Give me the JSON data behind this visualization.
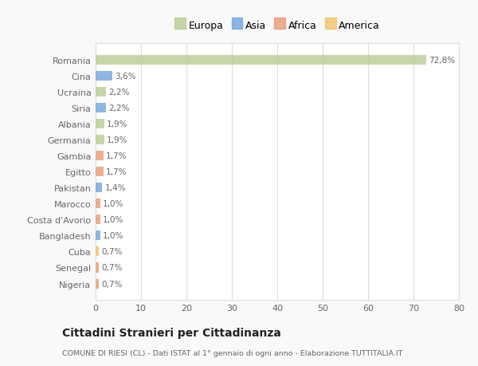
{
  "categories": [
    "Nigeria",
    "Senegal",
    "Cuba",
    "Bangladesh",
    "Costa d'Avorio",
    "Marocco",
    "Pakistan",
    "Egitto",
    "Gambia",
    "Germania",
    "Albania",
    "Siria",
    "Ucraina",
    "Cina",
    "Romania"
  ],
  "values": [
    0.7,
    0.7,
    0.7,
    1.0,
    1.0,
    1.0,
    1.4,
    1.7,
    1.7,
    1.9,
    1.9,
    2.2,
    2.2,
    3.6,
    72.8
  ],
  "labels": [
    "0,7%",
    "0,7%",
    "0,7%",
    "1,0%",
    "1,0%",
    "1,0%",
    "1,4%",
    "1,7%",
    "1,7%",
    "1,9%",
    "1,9%",
    "2,2%",
    "2,2%",
    "3,6%",
    "72,8%"
  ],
  "colors": [
    "#e8956d",
    "#e8956d",
    "#f0c060",
    "#6a9fd8",
    "#e8956d",
    "#e8956d",
    "#6a9fd8",
    "#e8956d",
    "#e8956d",
    "#b5c98e",
    "#b5c98e",
    "#6a9fd8",
    "#b5c98e",
    "#6a9fd8",
    "#b5c98e"
  ],
  "legend": [
    {
      "label": "Europa",
      "color": "#b5c98e"
    },
    {
      "label": "Asia",
      "color": "#6a9fd8"
    },
    {
      "label": "Africa",
      "color": "#e8956d"
    },
    {
      "label": "America",
      "color": "#f0c060"
    }
  ],
  "title": "Cittadini Stranieri per Cittadinanza",
  "subtitle": "COMUNE DI RIESI (CL) - Dati ISTAT al 1° gennaio di ogni anno - Elaborazione TUTTITALIA.IT",
  "xlim": [
    0,
    80
  ],
  "xticks": [
    0,
    10,
    20,
    30,
    40,
    50,
    60,
    70,
    80
  ],
  "background_color": "#f9f9f9",
  "plot_bg_color": "#ffffff",
  "grid_color": "#dddddd",
  "label_color": "#666666",
  "title_color": "#222222",
  "subtitle_color": "#666666"
}
